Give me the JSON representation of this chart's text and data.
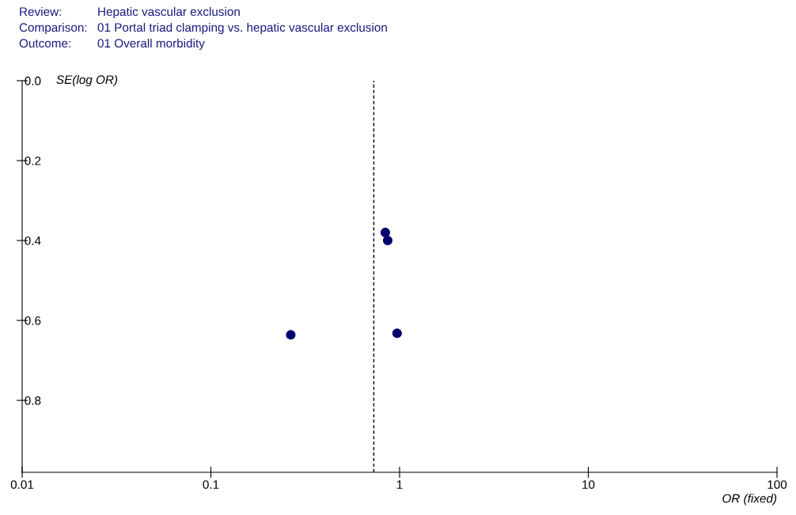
{
  "chart_data": {
    "type": "scatter",
    "annotations": [
      "Review:",
      "Hepatic vascular exclusion",
      "Comparison:",
      "01 Portal triad clamping vs. hepatic vascular exclusion",
      "Outcome:",
      "01 Overall morbidity"
    ],
    "xlabel": "OR (fixed)",
    "ylabel": "SE(log OR)",
    "log": "x",
    "x": [
      0.84,
      0.865,
      0.265,
      0.97
    ],
    "values": [
      0.38,
      0.4,
      0.636,
      0.632
    ],
    "color": "#00006e",
    "marker": "circle",
    "xlim": [
      0.01,
      100
    ],
    "xticks": [
      0.01,
      0.1,
      1,
      10,
      100
    ],
    "ylim": [
      0.98,
      0.0
    ],
    "yticks": [
      {
        "value": 0.0,
        "label": "0.0"
      },
      0.2,
      0.4,
      0.6,
      0.8
    ],
    "ref_lines": [
      {
        "axis": "x",
        "value": 0.73,
        "line_style": "dashed",
        "color": "#000000"
      }
    ],
    "grid": false,
    "legend": false
  }
}
